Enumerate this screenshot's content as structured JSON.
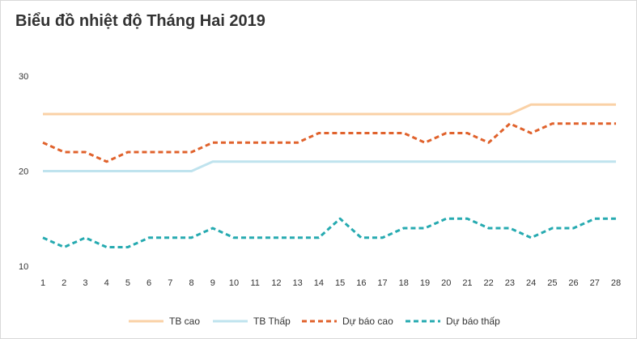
{
  "chart_data": {
    "type": "line",
    "title": "Biểu đồ nhiệt độ Tháng Hai 2019",
    "xlabel": "",
    "ylabel": "",
    "ylim": [
      10,
      30
    ],
    "yticks": [
      10,
      20,
      30
    ],
    "grid": false,
    "legend_position": "bottom",
    "x": [
      1,
      2,
      3,
      4,
      5,
      6,
      7,
      8,
      9,
      10,
      11,
      12,
      13,
      14,
      15,
      16,
      17,
      18,
      19,
      20,
      21,
      22,
      23,
      24,
      25,
      26,
      27,
      28
    ],
    "series": [
      {
        "name": "TB cao",
        "style": "solid",
        "color": "#fad1a6",
        "values": [
          26,
          26,
          26,
          26,
          26,
          26,
          26,
          26,
          26,
          26,
          26,
          26,
          26,
          26,
          26,
          26,
          26,
          26,
          26,
          26,
          26,
          26,
          26,
          27,
          27,
          27,
          27,
          27
        ]
      },
      {
        "name": "TB Thấp",
        "style": "solid",
        "color": "#bfe3ee",
        "values": [
          20,
          20,
          20,
          20,
          20,
          20,
          20,
          20,
          21,
          21,
          21,
          21,
          21,
          21,
          21,
          21,
          21,
          21,
          21,
          21,
          21,
          21,
          21,
          21,
          21,
          21,
          21,
          21
        ]
      },
      {
        "name": "Dự báo cao",
        "style": "dashed",
        "color": "#e0622c",
        "values": [
          23,
          22,
          22,
          21,
          22,
          22,
          22,
          22,
          23,
          23,
          23,
          23,
          23,
          24,
          24,
          24,
          24,
          24,
          23,
          24,
          24,
          23,
          25,
          24,
          25,
          25,
          25,
          25
        ]
      },
      {
        "name": "Dự báo thấp",
        "style": "dashed",
        "color": "#26aab0",
        "values": [
          13,
          12,
          13,
          12,
          12,
          13,
          13,
          13,
          14,
          13,
          13,
          13,
          13,
          13,
          15,
          13,
          13,
          14,
          14,
          15,
          15,
          14,
          14,
          13,
          14,
          14,
          15,
          15
        ]
      }
    ]
  }
}
